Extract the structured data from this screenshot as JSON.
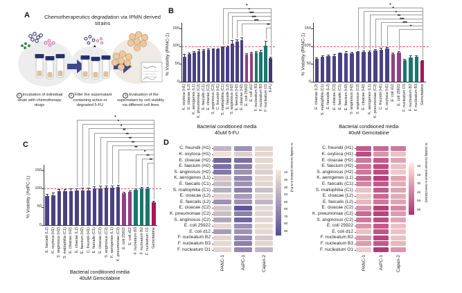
{
  "panels": {
    "a": "A",
    "b": "B",
    "c": "C",
    "d": "D"
  },
  "panel_a": {
    "title": "Chemotherapeutics degradation via IPMN derived strains",
    "steps": [
      {
        "num": "1",
        "text": "Incubation of individual strain with chemotherapy drugs"
      },
      {
        "num": "2",
        "text": "Filter the supernatant containing active or degraded 5-FU"
      },
      {
        "num": "3",
        "text": "Evaluation of the supernatant by cell viability via different cell lines"
      }
    ]
  },
  "colors": {
    "purple": "#4a4185",
    "plum": "#8e4285",
    "teal": "#17786e",
    "crimson": "#b01457",
    "navy": "#3d3c6e",
    "refline": "#e8486a"
  },
  "chart_data": [
    {
      "id": "b_left",
      "type": "bar",
      "ylabel": "% Viability (PANC-1)",
      "ylim": [
        0,
        150
      ],
      "yticks": [
        0,
        50,
        100,
        150
      ],
      "refline": 100,
      "xlabel_line1": "Bacterial conditioned media",
      "xlabel_line2": "40uM 5-FU",
      "categories": [
        "K. oxytoca (H1)",
        "E. cloacae (L2)",
        "K. aerogenes (L1)",
        "K. pneumoniae (C2)",
        "E. faecalis (C1)",
        "E. cloacae (C2)",
        "S. anginosus (C2)",
        "C. freundii (H1)",
        "S. maltophilia (C1)",
        "E. faecalis (L2)",
        "S. anginosus (H2)",
        "E. faecium (H2)",
        "E. cloacae (H2)",
        "E. coli 25922",
        "E. coli d12",
        "F. nucleatum B3",
        "F. nucleatum B2",
        "F. nucleatum O1",
        "5-FU"
      ],
      "values": [
        70,
        77,
        82,
        86,
        88,
        90,
        91,
        91,
        97,
        98,
        108,
        113,
        116,
        76,
        80,
        82,
        84,
        101,
        66
      ],
      "errors": [
        8,
        5,
        4,
        5,
        4,
        3,
        3,
        3,
        3,
        4,
        8,
        6,
        8,
        4,
        3,
        4,
        5,
        13,
        4
      ],
      "groups": [
        "purple",
        "purple",
        "purple",
        "purple",
        "purple",
        "purple",
        "purple",
        "purple",
        "purple",
        "purple",
        "purple",
        "purple",
        "purple",
        "plum",
        "plum",
        "teal",
        "teal",
        "teal",
        "navy"
      ],
      "brackets": [
        {
          "from": 9,
          "to": 19,
          "stars": "*"
        },
        {
          "from": 10,
          "to": 19,
          "stars": "*"
        },
        {
          "from": 11,
          "to": 19,
          "stars": "***"
        },
        {
          "from": 12,
          "to": 19,
          "stars": "***"
        },
        {
          "from": 13,
          "to": 19,
          "stars": "***"
        },
        {
          "from": 18,
          "to": 19,
          "stars": "**"
        }
      ]
    },
    {
      "id": "b_right",
      "type": "bar",
      "ylabel": "% Viability (PANC-1)",
      "ylim": [
        0,
        150
      ],
      "yticks": [
        0,
        50,
        100,
        150
      ],
      "refline": 100,
      "xlabel_line1": "Bacterial conditioned media",
      "xlabel_line2": "40uM Gemcitabine",
      "categories": [
        "E. cloacae (L2)",
        "S. maltophilia (C1)",
        "E. faecalis (L2)",
        "E. cloacae (C2)",
        "E. faecalis (C1)",
        "E. faecium (H2)",
        "S. anginosus (H2)",
        "S. anginosus (C2)",
        "E. cloacae (H2)",
        "K. aerogenes (L1)",
        "K. pneumoniae (C2)",
        "C. freundii (H1)",
        "K. oxytoca (H1)",
        "E. coli d12",
        "E. coli 25922",
        "F. nucleatum O1",
        "F. nucleatum B2",
        "F. nucleatum B3",
        "Gemcitabine"
      ],
      "values": [
        64,
        70,
        72,
        73,
        79,
        79,
        80,
        83,
        83,
        84,
        88,
        90,
        93,
        78,
        82,
        61,
        69,
        71,
        58
      ],
      "errors": [
        4,
        4,
        4,
        4,
        3,
        6,
        4,
        3,
        5,
        3,
        4,
        5,
        4,
        3,
        4,
        4,
        5,
        3,
        3
      ],
      "groups": [
        "purple",
        "purple",
        "purple",
        "purple",
        "purple",
        "purple",
        "purple",
        "purple",
        "purple",
        "purple",
        "purple",
        "purple",
        "purple",
        "plum",
        "plum",
        "teal",
        "teal",
        "teal",
        "crimson"
      ],
      "brackets": [
        {
          "from": 8,
          "to": 19,
          "stars": "*"
        },
        {
          "from": 9,
          "to": 19,
          "stars": "*"
        },
        {
          "from": 10,
          "to": 19,
          "stars": "*"
        },
        {
          "from": 11,
          "to": 19,
          "stars": "**"
        },
        {
          "from": 12,
          "to": 19,
          "stars": "***"
        },
        {
          "from": 13,
          "to": 19,
          "stars": "***"
        },
        {
          "from": 15,
          "to": 19,
          "stars": "*"
        }
      ]
    },
    {
      "id": "c",
      "type": "bar",
      "ylabel": "% Viability (AsPC-1)",
      "ylim": [
        0,
        150
      ],
      "yticks": [
        0,
        50,
        100,
        150
      ],
      "refline": 100,
      "xlabel_line1": "Bacterial conditioned media",
      "xlabel_line2": "40uM Gemcitabine",
      "categories": [
        "E. faecalis (L2)",
        "K. oxytoca (H1)",
        "S. anginosus (H2)",
        "S. maltophilia (C1)",
        "E. cloacae (H2)",
        "E. cloacae (L2)",
        "E. faecium (H2)",
        "C. freundii (H1)",
        "E. faecalis (C1)",
        "E. cloacae (C2)",
        "S. anginosus (C2)",
        "K. aerogenes (L1)",
        "K. pneumoniae (C2)",
        "E. coli 25922",
        "E. coli d12",
        "F. nucleatum B3",
        "F. nucleatum B2",
        "F. nucleatum O1",
        "Gemcitabine"
      ],
      "values": [
        79,
        81,
        93,
        93,
        93,
        94,
        94,
        95,
        100,
        101,
        102,
        103,
        104,
        88,
        91,
        96,
        100,
        100,
        62
      ],
      "errors": [
        7,
        8,
        6,
        5,
        7,
        7,
        9,
        7,
        7,
        7,
        7,
        6,
        6,
        4,
        4,
        4,
        4,
        5,
        4
      ],
      "groups": [
        "purple",
        "purple",
        "purple",
        "purple",
        "purple",
        "purple",
        "purple",
        "purple",
        "purple",
        "purple",
        "purple",
        "purple",
        "purple",
        "plum",
        "plum",
        "teal",
        "teal",
        "teal",
        "crimson"
      ],
      "brackets": [
        {
          "from": 6,
          "to": 19,
          "stars": "*"
        },
        {
          "from": 7,
          "to": 19,
          "stars": "*"
        },
        {
          "from": 8,
          "to": 19,
          "stars": "*"
        },
        {
          "from": 9,
          "to": 19,
          "stars": "**"
        },
        {
          "from": 10,
          "to": 19,
          "stars": "**"
        },
        {
          "from": 11,
          "to": 19,
          "stars": "**"
        },
        {
          "from": 12,
          "to": 19,
          "stars": "**"
        },
        {
          "from": 13,
          "to": 19,
          "stars": "**"
        },
        {
          "from": 16,
          "to": 19,
          "stars": "*"
        },
        {
          "from": 17,
          "to": 19,
          "stars": "**"
        },
        {
          "from": 18,
          "to": 19,
          "stars": "**"
        }
      ]
    },
    {
      "id": "d_left",
      "type": "heatmap",
      "columns": [
        "PANC-1",
        "AsPC-1",
        "Capan-2"
      ],
      "rows": [
        "C. freundii (H1)",
        "K. oxytoca (H1)",
        "E. cloacae (H2)",
        "E. faecium (H2)",
        "S. anginosus (H2)",
        "K. aerogenes (L1)",
        "E. faecalis (C1)",
        "S. maltophilia (C1)",
        "E. cloacae (L2)",
        "E. faecalis (L2)",
        "E. cloacae (C2)",
        "K. pneumoniae (C2)",
        "S. anginosus (C2)",
        "E. coli 25922",
        "E. coli d12",
        "F. nucleatum B2",
        "F. nucleatum B3",
        "F. nucleatum O1"
      ],
      "values": [
        [
          30,
          50,
          12
        ],
        [
          5,
          15,
          10
        ],
        [
          75,
          70,
          12
        ],
        [
          70,
          60,
          10
        ],
        [
          65,
          50,
          15
        ],
        [
          20,
          55,
          10
        ],
        [
          25,
          50,
          12
        ],
        [
          35,
          60,
          25
        ],
        [
          12,
          45,
          10
        ],
        [
          50,
          50,
          30
        ],
        [
          20,
          85,
          10
        ],
        [
          25,
          60,
          12
        ],
        [
          40,
          75,
          12
        ],
        [
          10,
          50,
          8
        ],
        [
          45,
          50,
          10
        ],
        [
          12,
          55,
          18
        ],
        [
          10,
          60,
          12
        ],
        [
          12,
          55,
          30
        ]
      ],
      "scale_max": 90,
      "color_low": "#f7ead9",
      "color_high": "#564c97",
      "colorbar_ticks": [
        10,
        20,
        30,
        40,
        50,
        60,
        70,
        80,
        90
      ],
      "colorbar_label": "% Viability increase (relative to 5-FU)"
    },
    {
      "id": "d_right",
      "type": "heatmap",
      "columns": [
        "PANC-1",
        "AsPC-1",
        "Capan-2"
      ],
      "rows": [
        "C. freundii (H1)",
        "K. oxytoca (H1)",
        "E. cloacae (H2)",
        "E. faecium (H2)",
        "S. anginosus (H2)",
        "K. aerogenes (L1)",
        "E. faecalis (C1)",
        "S. maltophilia (C1)",
        "E. cloacae (L2)",
        "E. faecalis (L2)",
        "E. cloacae (C2)",
        "K. pneumoniae (C2)",
        "S. anginosus (C2)",
        "E. coli 25922",
        "E. coli d12",
        "F. nucleatum B2",
        "F. nucleatum B3",
        "F. nucleatum O1"
      ],
      "values": [
        [
          50,
          45,
          40
        ],
        [
          55,
          30,
          15
        ],
        [
          40,
          50,
          25
        ],
        [
          40,
          55,
          15
        ],
        [
          40,
          55,
          12
        ],
        [
          45,
          60,
          25
        ],
        [
          35,
          50,
          22
        ],
        [
          15,
          50,
          25
        ],
        [
          12,
          45,
          22
        ],
        [
          18,
          40,
          25
        ],
        [
          30,
          60,
          35
        ],
        [
          45,
          58,
          28
        ],
        [
          40,
          55,
          25
        ],
        [
          30,
          50,
          15
        ],
        [
          15,
          52,
          15
        ],
        [
          28,
          58,
          15
        ],
        [
          28,
          50,
          18
        ],
        [
          12,
          62,
          30
        ]
      ],
      "scale_max": 65,
      "color_low": "#fcecdf",
      "color_high": "#b13070",
      "colorbar_ticks": [
        10,
        20,
        30,
        40,
        50,
        60
      ],
      "colorbar_label": "% Viability increase (relative to Gemcitabine)"
    }
  ]
}
